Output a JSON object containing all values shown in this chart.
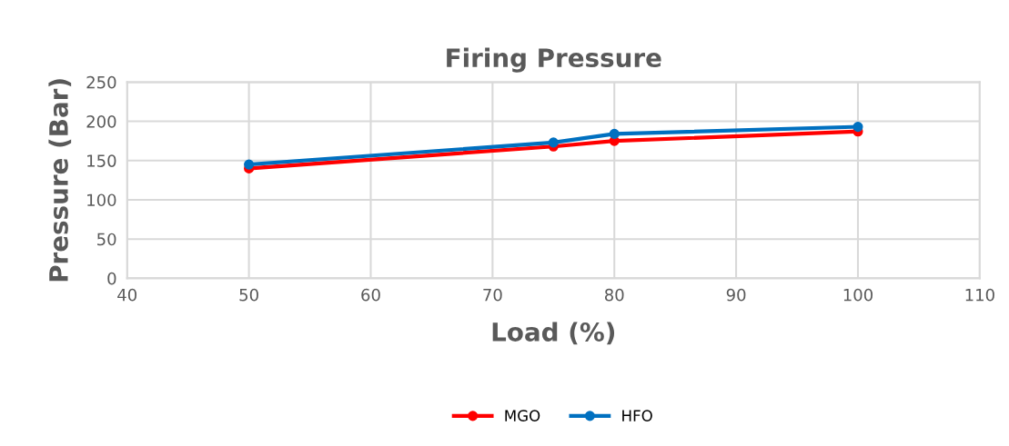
{
  "chart_data": {
    "type": "line",
    "title": "Firing Pressure",
    "xlabel": "Load (%)",
    "ylabel": "Pressure (Bar)",
    "x": [
      50,
      75,
      80,
      100
    ],
    "series": [
      {
        "name": "MGO",
        "color": "#ff0000",
        "values": [
          140,
          168,
          175,
          187
        ]
      },
      {
        "name": "HFO",
        "color": "#0070c0",
        "values": [
          145,
          173,
          184,
          193
        ]
      }
    ],
    "xlim": [
      40,
      110
    ],
    "xticks": [
      40,
      50,
      60,
      70,
      80,
      90,
      100,
      110
    ],
    "ylim": [
      0,
      250
    ],
    "yticks": [
      0,
      50,
      100,
      150,
      200,
      250
    ],
    "grid": true,
    "legend": "bottom",
    "marker": "circle",
    "line_style": "solid"
  }
}
